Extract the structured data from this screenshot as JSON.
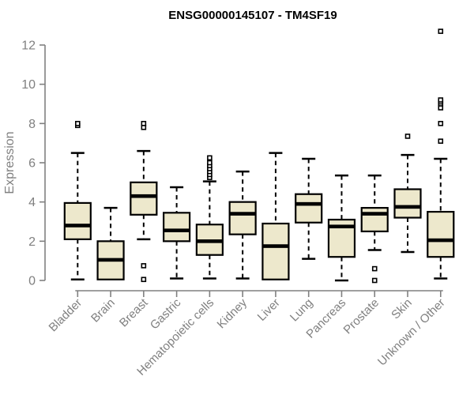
{
  "chart_data": {
    "type": "boxplot",
    "title": "ENSG00000145107 - TM4SF19",
    "ylabel": "Expression",
    "xlabel": "",
    "ylim": [
      0,
      12
    ],
    "yticks": [
      0,
      2,
      4,
      6,
      8,
      10,
      12
    ],
    "grid": false,
    "legend": false,
    "categories": [
      "Bladder",
      "Brain",
      "Breast",
      "Gastric",
      "Hematopoietic cells",
      "Kidney",
      "Liver",
      "Lung",
      "Pancreas",
      "Prostate",
      "Skin",
      "Unknown / Other"
    ],
    "boxes": [
      {
        "category": "Bladder",
        "whisker_low": 0.05,
        "q1": 2.1,
        "median": 2.8,
        "q3": 3.95,
        "whisker_high": 6.5,
        "outliers": [
          7.9,
          8.0
        ]
      },
      {
        "category": "Brain",
        "whisker_low": null,
        "q1": 0.05,
        "median": 1.05,
        "q3": 2.0,
        "whisker_high": 3.7,
        "outliers": []
      },
      {
        "category": "Breast",
        "whisker_low": 2.1,
        "q1": 3.35,
        "median": 4.3,
        "q3": 5.0,
        "whisker_high": 6.6,
        "outliers": [
          0.05,
          0.75,
          7.8,
          8.0
        ]
      },
      {
        "category": "Gastric",
        "whisker_low": 0.1,
        "q1": 2.0,
        "median": 2.55,
        "q3": 3.45,
        "whisker_high": 4.75,
        "outliers": []
      },
      {
        "category": "Hematopoietic cells",
        "whisker_low": 0.1,
        "q1": 1.3,
        "median": 2.0,
        "q3": 2.85,
        "whisker_high": 5.05,
        "outliers": [
          5.25,
          5.4,
          5.55,
          5.7,
          5.85,
          6.0,
          6.25
        ]
      },
      {
        "category": "Kidney",
        "whisker_low": 0.1,
        "q1": 2.35,
        "median": 3.4,
        "q3": 4.0,
        "whisker_high": 5.55,
        "outliers": []
      },
      {
        "category": "Liver",
        "whisker_low": null,
        "q1": 0.05,
        "median": 1.75,
        "q3": 2.9,
        "whisker_high": 6.5,
        "outliers": []
      },
      {
        "category": "Lung",
        "whisker_low": 1.1,
        "q1": 2.95,
        "median": 3.9,
        "q3": 4.4,
        "whisker_high": 6.2,
        "outliers": []
      },
      {
        "category": "Pancreas",
        "whisker_low": 0.0,
        "q1": 1.2,
        "median": 2.75,
        "q3": 3.1,
        "whisker_high": 5.35,
        "outliers": []
      },
      {
        "category": "Prostate",
        "whisker_low": 1.55,
        "q1": 2.5,
        "median": 3.4,
        "q3": 3.7,
        "whisker_high": 5.35,
        "outliers": [
          0.0,
          0.6
        ]
      },
      {
        "category": "Skin",
        "whisker_low": 1.45,
        "q1": 3.2,
        "median": 3.75,
        "q3": 4.65,
        "whisker_high": 6.4,
        "outliers": [
          7.35
        ]
      },
      {
        "category": "Unknown / Other",
        "whisker_low": 0.1,
        "q1": 1.2,
        "median": 2.05,
        "q3": 3.5,
        "whisker_high": 6.2,
        "outliers": [
          7.1,
          8.0,
          8.8,
          9.0,
          9.1,
          9.2,
          12.7
        ]
      }
    ],
    "style": {
      "box_fill": "#EDE8CC",
      "box_stroke": "#000000",
      "median_color": "#000000",
      "whisker_color": "#000000",
      "whisker_style": "dashed",
      "outlier_marker": "open-square",
      "outlier_color": "#000000",
      "axis_color": "#808080",
      "tick_label_color": "#808080",
      "title_color": "#000000",
      "background": "#FFFFFF"
    }
  }
}
